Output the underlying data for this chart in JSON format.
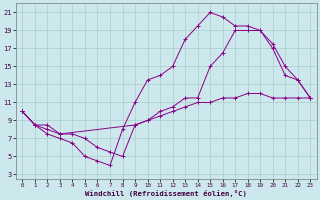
{
  "xlabel": "Windchill (Refroidissement éolien,°C)",
  "bg_color": "#cce8ec",
  "grid_color": "#aacccc",
  "line_color": "#880088",
  "xlim": [
    -0.5,
    23.5
  ],
  "ylim": [
    2.5,
    22
  ],
  "xticks": [
    0,
    1,
    2,
    3,
    4,
    5,
    6,
    7,
    8,
    9,
    10,
    11,
    12,
    13,
    14,
    15,
    16,
    17,
    18,
    19,
    20,
    21,
    22,
    23
  ],
  "yticks": [
    3,
    5,
    7,
    9,
    11,
    13,
    15,
    17,
    19,
    21
  ],
  "line1_x": [
    0,
    1,
    2,
    3,
    4,
    5,
    6,
    7,
    8,
    9,
    10,
    11,
    12,
    13,
    14,
    15,
    16,
    17,
    18,
    19,
    20,
    21,
    22,
    23
  ],
  "line1_y": [
    10,
    8.5,
    8,
    7.5,
    7.5,
    7,
    6,
    5.5,
    5,
    8.5,
    9,
    9.5,
    10,
    10.5,
    11,
    11,
    11.5,
    11.5,
    12,
    12,
    11.5,
    11.5,
    11.5,
    11.5
  ],
  "line2_x": [
    0,
    1,
    2,
    3,
    4,
    5,
    6,
    7,
    8,
    9,
    10,
    11,
    12,
    13,
    14,
    15,
    16,
    17,
    18,
    19,
    20,
    21,
    22,
    23
  ],
  "line2_y": [
    10,
    8.5,
    7.5,
    7,
    6.5,
    5,
    4.5,
    4,
    8,
    11,
    13.5,
    14,
    15,
    18,
    19.5,
    21,
    20.5,
    19.5,
    19.5,
    19,
    17.5,
    15,
    13.5,
    11.5
  ],
  "line3_x": [
    0,
    1,
    2,
    3,
    9,
    10,
    11,
    12,
    13,
    14,
    15,
    16,
    17,
    18,
    19,
    20,
    21,
    22,
    23
  ],
  "line3_y": [
    10,
    8.5,
    8.5,
    7.5,
    8.5,
    9,
    10,
    10.5,
    11.5,
    11.5,
    15,
    16.5,
    19,
    19,
    19,
    17,
    14,
    13.5,
    11.5
  ]
}
